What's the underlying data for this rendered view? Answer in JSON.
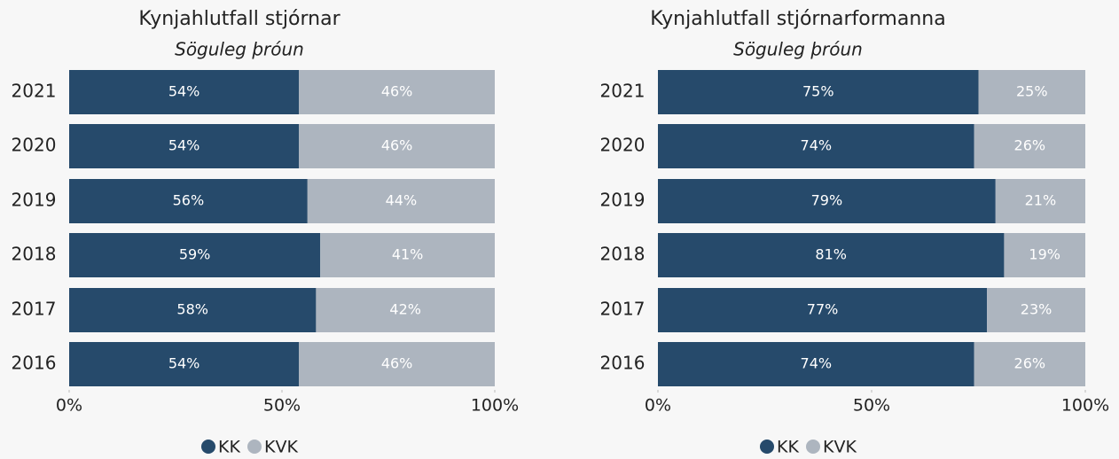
{
  "chart_data": [
    {
      "type": "bar",
      "stacked": true,
      "orientation": "horizontal",
      "title": "Kynjahlutfall stjórnar",
      "subtitle": "Söguleg þróun",
      "categories": [
        "2021",
        "2020",
        "2019",
        "2018",
        "2017",
        "2016"
      ],
      "series": [
        {
          "name": "KK",
          "color": "#264a6b",
          "values": [
            54,
            54,
            56,
            59,
            58,
            54
          ],
          "value_labels": [
            "54%",
            "54%",
            "56%",
            "59%",
            "58%",
            "54%"
          ]
        },
        {
          "name": "KVK",
          "color": "#adb5bf",
          "values": [
            46,
            46,
            44,
            41,
            42,
            46
          ],
          "value_labels": [
            "46%",
            "46%",
            "44%",
            "41%",
            "42%",
            "46%"
          ]
        }
      ],
      "xlim": [
        0,
        100
      ],
      "xticks": [
        {
          "value": 0,
          "label": "0%"
        },
        {
          "value": 50,
          "label": "50%"
        },
        {
          "value": 100,
          "label": "100%"
        }
      ],
      "legend": "bottom"
    },
    {
      "type": "bar",
      "stacked": true,
      "orientation": "horizontal",
      "title": "Kynjahlutfall stjórnarformanna",
      "subtitle": "Söguleg þróun",
      "categories": [
        "2021",
        "2020",
        "2019",
        "2018",
        "2017",
        "2016"
      ],
      "series": [
        {
          "name": "KK",
          "color": "#264a6b",
          "values": [
            75,
            74,
            79,
            81,
            77,
            74
          ],
          "value_labels": [
            "75%",
            "74%",
            "79%",
            "81%",
            "77%",
            "74%"
          ]
        },
        {
          "name": "KVK",
          "color": "#adb5bf",
          "values": [
            25,
            26,
            21,
            19,
            23,
            26
          ],
          "value_labels": [
            "25%",
            "26%",
            "21%",
            "19%",
            "23%",
            "26%"
          ]
        }
      ],
      "xlim": [
        0,
        100
      ],
      "xticks": [
        {
          "value": 0,
          "label": "0%"
        },
        {
          "value": 50,
          "label": "50%"
        },
        {
          "value": 100,
          "label": "100%"
        }
      ],
      "legend": "bottom"
    }
  ]
}
